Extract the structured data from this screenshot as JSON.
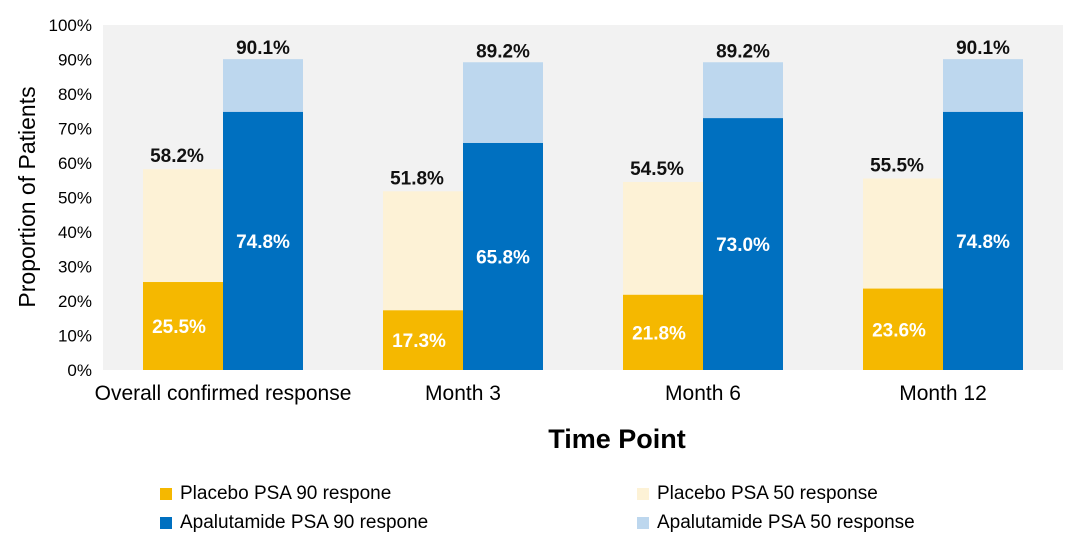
{
  "chart_data": {
    "type": "bar",
    "subtype": "stacked-overlay",
    "categories": [
      "Overall confirmed response",
      "Month 3",
      "Month 6",
      "Month 12"
    ],
    "series": [
      {
        "name": "Placebo PSA 90 respone",
        "group": "Placebo",
        "values": [
          25.5,
          17.3,
          21.8,
          23.6
        ],
        "color": "#F5B800"
      },
      {
        "name": "Placebo PSA 50 response",
        "group": "Placebo",
        "values": [
          58.2,
          51.8,
          54.5,
          55.5
        ],
        "color": "#FDF2D6"
      },
      {
        "name": "Apalutamide PSA 90 respone",
        "group": "Apalutamide",
        "values": [
          74.8,
          65.8,
          73.0,
          74.8
        ],
        "color": "#0070C0"
      },
      {
        "name": "Apalutamide PSA 50 response",
        "group": "Apalutamide",
        "values": [
          90.1,
          89.2,
          89.2,
          90.1
        ],
        "color": "#BDD7EE"
      }
    ],
    "data_labels": {
      "placebo_90": [
        "25.5%",
        "17.3%",
        "21.8%",
        "23.6%"
      ],
      "placebo_50": [
        "58.2%",
        "51.8%",
        "54.5%",
        "55.5%"
      ],
      "apalutamide_90": [
        "74.8%",
        "65.8%",
        "73.0%",
        "74.8%"
      ],
      "apalutamide_50": [
        "90.1%",
        "89.2%",
        "89.2%",
        "90.1%"
      ]
    },
    "y_ticks": [
      "0%",
      "10%",
      "20%",
      "30%",
      "40%",
      "50%",
      "60%",
      "70%",
      "80%",
      "90%",
      "100%"
    ],
    "ylim": [
      0,
      100
    ],
    "title": "",
    "xlabel": "Time Point",
    "ylabel": "Proportion of Patients",
    "plot_background": "#F2F2F2",
    "grid": false,
    "legend_position": "bottom"
  },
  "legend": {
    "items": [
      {
        "label": "Placebo PSA 90 respone",
        "color": "#F5B800"
      },
      {
        "label": "Placebo PSA 50 response",
        "color": "#FDF2D6"
      },
      {
        "label": "Apalutamide PSA 90 respone",
        "color": "#0070C0"
      },
      {
        "label": "Apalutamide PSA 50 response",
        "color": "#BDD7EE"
      }
    ]
  }
}
